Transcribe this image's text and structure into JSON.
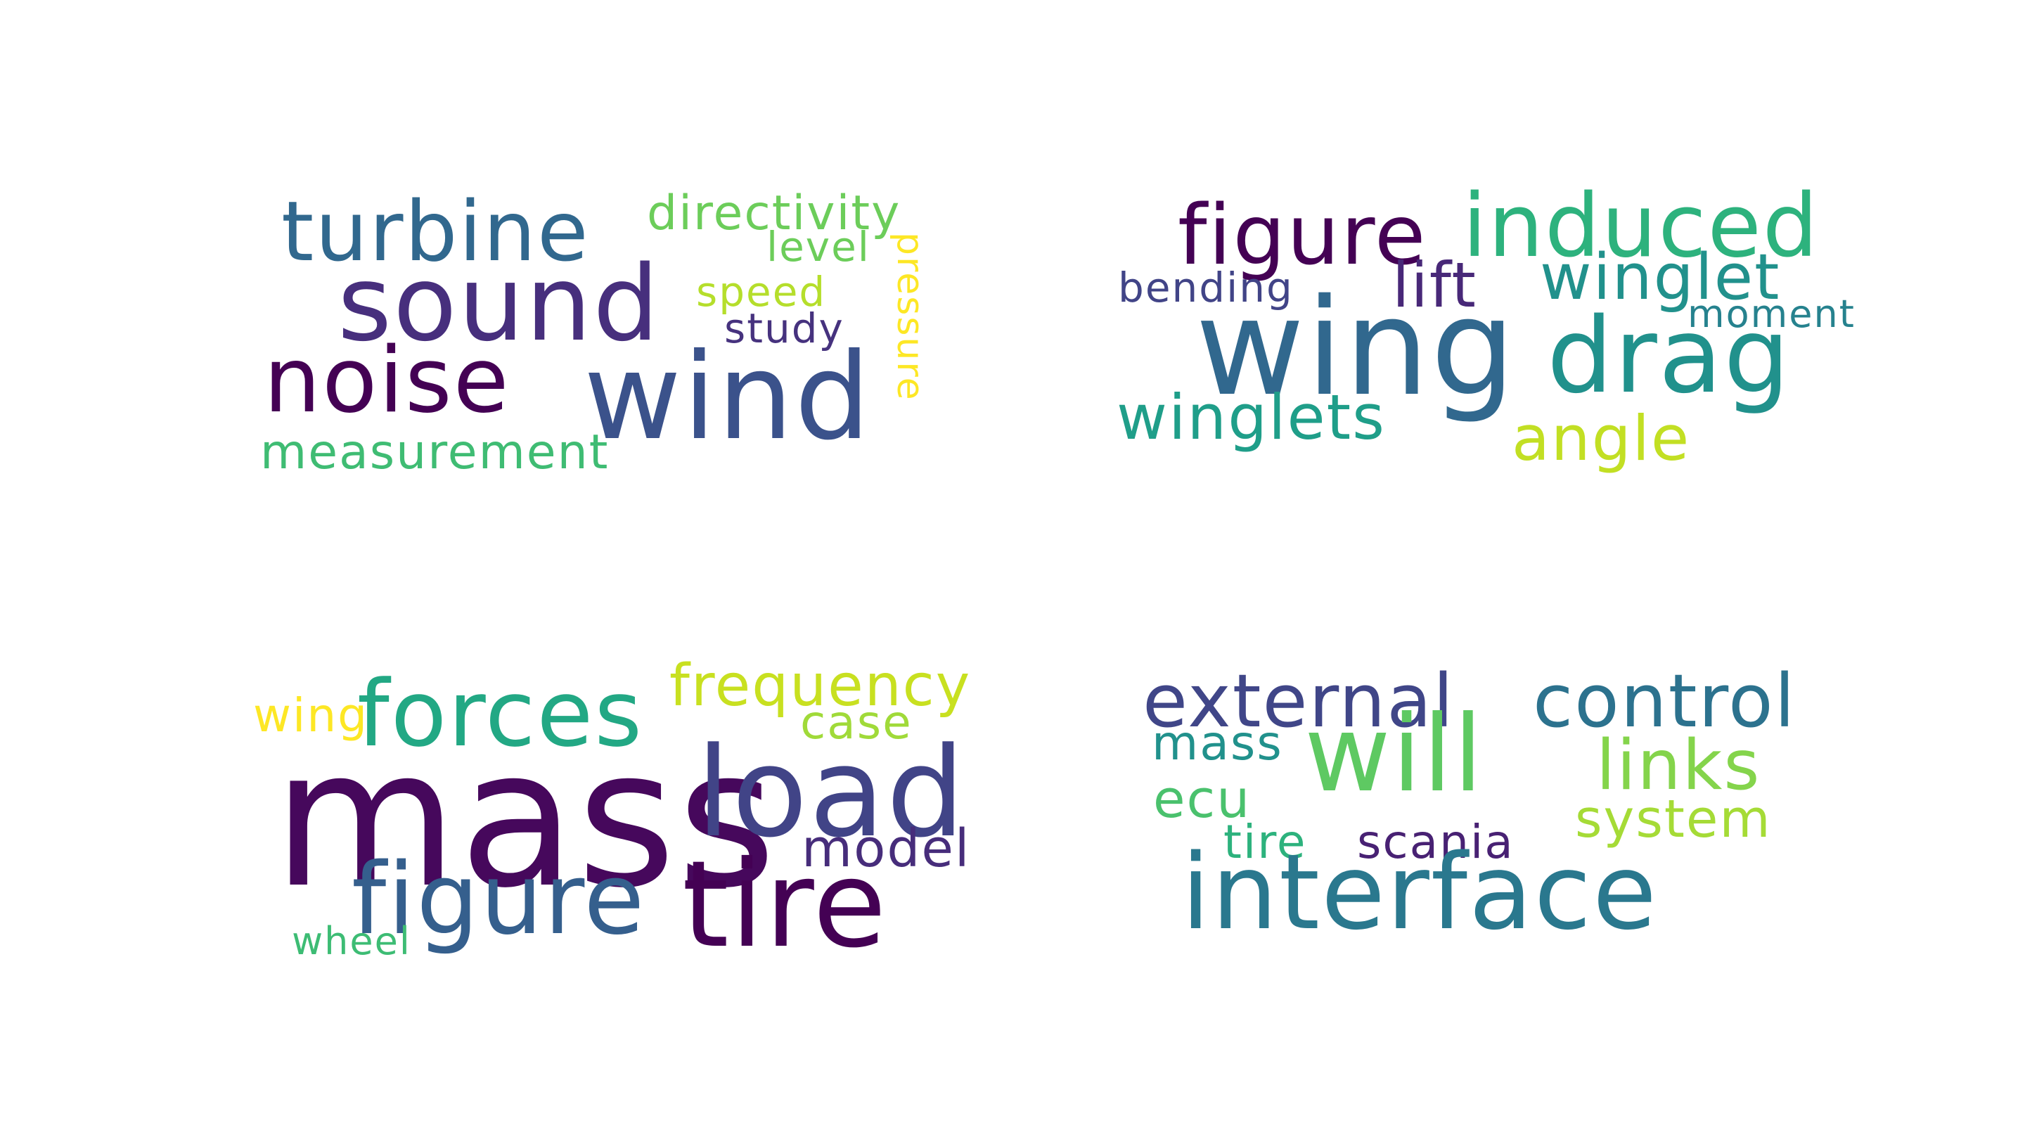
{
  "clouds": [
    {
      "words": [
        {
          "text": "turbine",
          "color": "#31688e"
        },
        {
          "text": "directivity",
          "color": "#6ccd5a"
        },
        {
          "text": "level",
          "color": "#6ccd5a"
        },
        {
          "text": "sound",
          "color": "#472f7d"
        },
        {
          "text": "speed",
          "color": "#b5de2b"
        },
        {
          "text": "study",
          "color": "#46327e"
        },
        {
          "text": "pressure",
          "color": "#fde725"
        },
        {
          "text": "noise",
          "color": "#440154"
        },
        {
          "text": "wind",
          "color": "#3b528b"
        },
        {
          "text": "measurement",
          "color": "#3fbc73"
        }
      ]
    },
    {
      "words": [
        {
          "text": "figure",
          "color": "#440154"
        },
        {
          "text": "induced",
          "color": "#2db27d"
        },
        {
          "text": "bending",
          "color": "#414487"
        },
        {
          "text": "lift",
          "color": "#482878"
        },
        {
          "text": "winglet",
          "color": "#21918c"
        },
        {
          "text": "wing",
          "color": "#31688e"
        },
        {
          "text": "drag",
          "color": "#21918c"
        },
        {
          "text": "moment",
          "color": "#26828e"
        },
        {
          "text": "winglets",
          "color": "#1f9e89"
        },
        {
          "text": "angle",
          "color": "#c2df23"
        }
      ]
    },
    {
      "words": [
        {
          "text": "wing",
          "color": "#fde725"
        },
        {
          "text": "forces",
          "color": "#22a884"
        },
        {
          "text": "frequency",
          "color": "#c8e020"
        },
        {
          "text": "case",
          "color": "#a0da39"
        },
        {
          "text": "mass",
          "color": "#46085c"
        },
        {
          "text": "load",
          "color": "#414487"
        },
        {
          "text": "model",
          "color": "#472d7b"
        },
        {
          "text": "figure",
          "color": "#355f8d"
        },
        {
          "text": "tire",
          "color": "#440154"
        },
        {
          "text": "wheel",
          "color": "#3dbc74"
        }
      ]
    },
    {
      "words": [
        {
          "text": "external",
          "color": "#404688"
        },
        {
          "text": "control",
          "color": "#2c728e"
        },
        {
          "text": "mass",
          "color": "#21918c"
        },
        {
          "text": "will",
          "color": "#5ec962"
        },
        {
          "text": "links",
          "color": "#84d44b"
        },
        {
          "text": "ecu",
          "color": "#4ac16d"
        },
        {
          "text": "system",
          "color": "#a5db36"
        },
        {
          "text": "tire",
          "color": "#2db27d"
        },
        {
          "text": "scania",
          "color": "#482173"
        },
        {
          "text": "interface",
          "color": "#2a788e"
        }
      ]
    }
  ]
}
